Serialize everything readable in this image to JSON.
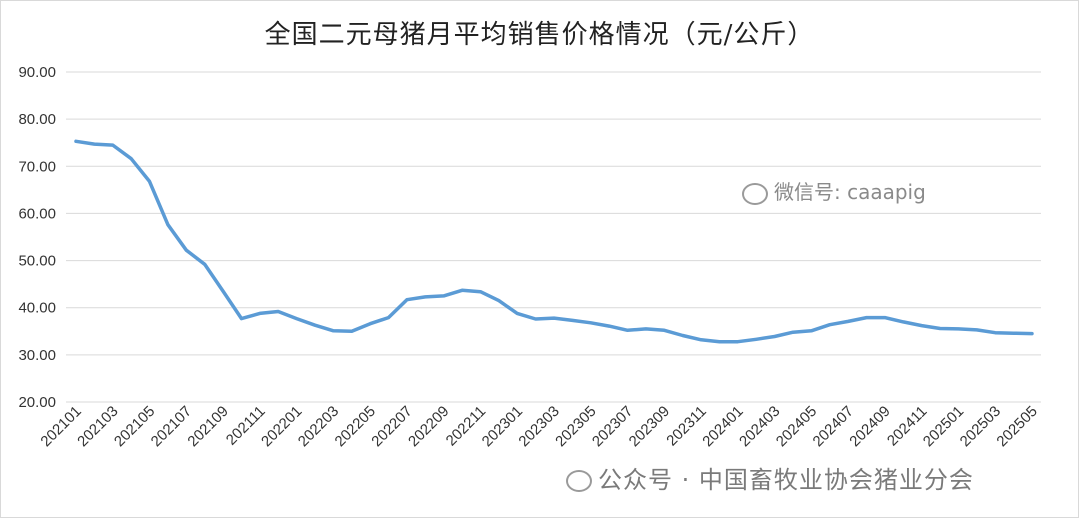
{
  "chart_data": {
    "type": "line",
    "title": "全国二元母猪月平均销售价格情况（元/公斤）",
    "xlabel": "",
    "ylabel": "",
    "ylim": [
      20,
      90
    ],
    "yticks": [
      "20.00",
      "30.00",
      "40.00",
      "50.00",
      "60.00",
      "70.00",
      "80.00",
      "90.00"
    ],
    "y_tick_values": [
      20,
      30,
      40,
      50,
      60,
      70,
      80,
      90
    ],
    "grid": true,
    "legend": "none",
    "line_color": "#5b9bd5",
    "x_tick_labels": [
      "202101",
      "202103",
      "202105",
      "202107",
      "202109",
      "202111",
      "202201",
      "202203",
      "202205",
      "202207",
      "202209",
      "202211",
      "202301",
      "202303",
      "202305",
      "202307",
      "202309",
      "202311",
      "202401",
      "202403",
      "202405",
      "202407",
      "202409",
      "202411",
      "202501",
      "202503",
      "202505"
    ],
    "x": [
      "202101",
      "202102",
      "202103",
      "202104",
      "202105",
      "202106",
      "202107",
      "202108",
      "202109",
      "202110",
      "202111",
      "202112",
      "202201",
      "202202",
      "202203",
      "202204",
      "202205",
      "202206",
      "202207",
      "202208",
      "202209",
      "202210",
      "202211",
      "202212",
      "202301",
      "202302",
      "202303",
      "202304",
      "202305",
      "202306",
      "202307",
      "202308",
      "202309",
      "202310",
      "202311",
      "202312",
      "202401",
      "202402",
      "202403",
      "202404",
      "202405",
      "202406",
      "202407",
      "202408",
      "202409",
      "202410",
      "202411",
      "202412",
      "202501",
      "202502",
      "202503",
      "202504",
      "202505"
    ],
    "series": [
      {
        "values": [
          75.3,
          74.7,
          74.5,
          71.6,
          66.8,
          57.6,
          52.2,
          49.2,
          43.5,
          37.7,
          38.8,
          39.2,
          37.7,
          36.3,
          35.1,
          35.0,
          36.6,
          37.9,
          41.7,
          42.3,
          42.5,
          43.7,
          43.4,
          41.5,
          38.8,
          37.6,
          37.8,
          37.3,
          36.8,
          36.1,
          35.2,
          35.5,
          35.2,
          34.1,
          33.2,
          32.8,
          32.8,
          33.3,
          33.9,
          34.8,
          35.1,
          36.4,
          37.1,
          37.9,
          37.9,
          37.0,
          36.2,
          35.6,
          35.5,
          35.3,
          34.7,
          34.6,
          34.5
        ]
      }
    ]
  },
  "watermarks": {
    "wechat": "微信号: caaapig",
    "source": "公众号 · 中国畜牧业协会猪业分会"
  }
}
